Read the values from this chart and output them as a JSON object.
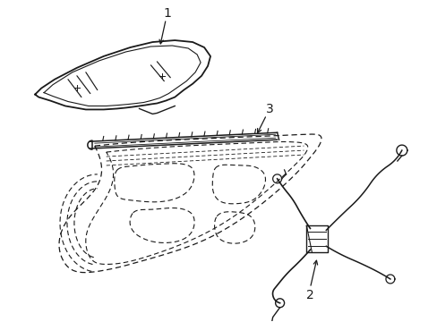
{
  "background_color": "#ffffff",
  "line_color": "#1a1a1a",
  "figsize": [
    4.89,
    3.6
  ],
  "dpi": 100,
  "label1": "1",
  "label2": "2",
  "label3": "3"
}
